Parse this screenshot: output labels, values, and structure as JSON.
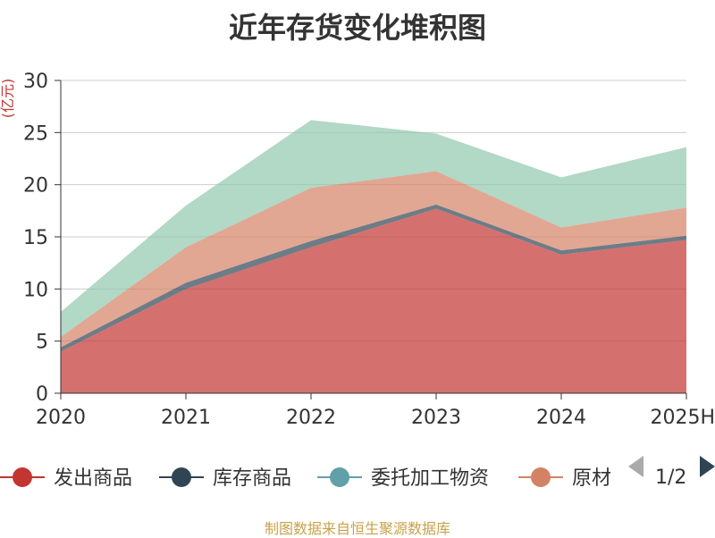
{
  "chart_data": {
    "type": "area",
    "stacked": true,
    "title": "近年存货变化堆积图",
    "ylabel": "(亿元)",
    "categories": [
      "2020",
      "2021",
      "2022",
      "2023",
      "2024",
      "2025H"
    ],
    "ylim": [
      0,
      30
    ],
    "yticks": [
      "0",
      "5",
      "10",
      "15",
      "20",
      "25",
      "30"
    ],
    "grid": true,
    "legend_position": "bottom",
    "legend_page": "1/2",
    "legend_visible": [
      "发出商品",
      "库存商品",
      "委托加工物资",
      "原材料"
    ],
    "series": [
      {
        "name": "发出商品",
        "color": "#c23531",
        "values": [
          4.0,
          10.0,
          14.0,
          17.7,
          13.3,
          14.7
        ]
      },
      {
        "name": "库存商品",
        "color": "#2f4554",
        "values": [
          0.4,
          0.6,
          0.6,
          0.4,
          0.4,
          0.4
        ]
      },
      {
        "name": "委托加工物资",
        "color": "#61a0a8",
        "values": [
          0.0,
          0.0,
          0.0,
          0.0,
          0.0,
          0.0
        ]
      },
      {
        "name": "原材料",
        "color": "#d48265",
        "values": [
          1.0,
          3.4,
          5.1,
          3.2,
          2.2,
          2.7
        ]
      },
      {
        "name": "",
        "color": "#91c7ae",
        "values": [
          2.4,
          4.0,
          6.5,
          3.6,
          4.8,
          5.8
        ]
      }
    ]
  },
  "footer": {
    "source": "制图数据来自恒生聚源数据库"
  }
}
